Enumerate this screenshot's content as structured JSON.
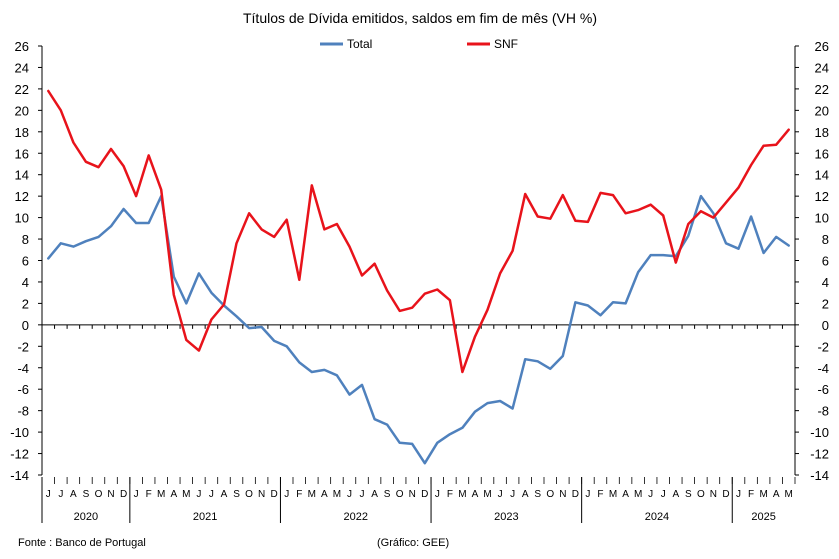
{
  "chart_data": {
    "type": "line",
    "title": "Títulos de Dívida emitidos, saldos em fim de mês  (VH %)",
    "ylim": [
      -14,
      26
    ],
    "yticks": [
      26,
      24,
      22,
      20,
      18,
      16,
      14,
      12,
      10,
      8,
      6,
      4,
      2,
      0,
      -2,
      -4,
      -6,
      -8,
      -10,
      -12,
      -14
    ],
    "grid": false,
    "legend_position": "top-center",
    "x": [
      "J",
      "J",
      "A",
      "S",
      "O",
      "N",
      "D",
      "J",
      "F",
      "M",
      "A",
      "M",
      "J",
      "J",
      "A",
      "S",
      "O",
      "N",
      "D",
      "J",
      "F",
      "M",
      "A",
      "M",
      "J",
      "J",
      "A",
      "S",
      "O",
      "N",
      "D",
      "J",
      "F",
      "M",
      "A",
      "M",
      "J",
      "J",
      "A",
      "S",
      "O",
      "N",
      "D",
      "J",
      "F",
      "M",
      "A",
      "M",
      "J",
      "J",
      "A",
      "S",
      "O",
      "N",
      "D",
      "J",
      "F",
      "M",
      "A",
      "M"
    ],
    "year_groups": [
      {
        "label": "2020",
        "count": 7
      },
      {
        "label": "2021",
        "count": 12
      },
      {
        "label": "2022",
        "count": 12
      },
      {
        "label": "2023",
        "count": 12
      },
      {
        "label": "2024",
        "count": 12
      },
      {
        "label": "2025",
        "count": 5
      }
    ],
    "series": [
      {
        "name": "Total",
        "color": "#4F81BD",
        "values": [
          6.2,
          7.6,
          7.3,
          7.8,
          8.2,
          9.2,
          10.8,
          9.5,
          9.5,
          12.0,
          4.5,
          2.0,
          4.8,
          3.0,
          1.8,
          0.8,
          -0.3,
          -0.2,
          -1.5,
          -2.0,
          -3.5,
          -4.4,
          -4.2,
          -4.7,
          -6.5,
          -5.6,
          -8.8,
          -9.3,
          -11.0,
          -11.1,
          -12.9,
          -11.0,
          -10.2,
          -9.6,
          -8.1,
          -7.3,
          -7.1,
          -7.8,
          -3.2,
          -3.4,
          -4.1,
          -2.9,
          2.1,
          1.8,
          0.9,
          2.1,
          2.0,
          4.9,
          6.5,
          6.5,
          6.4,
          8.3,
          12.0,
          10.4,
          7.6,
          7.1,
          10.1,
          6.7,
          8.2,
          7.4
        ]
      },
      {
        "name": "SNF",
        "color": "#E8131B",
        "values": [
          21.8,
          20.0,
          17.0,
          15.2,
          14.7,
          16.4,
          14.8,
          12.0,
          15.8,
          12.6,
          2.8,
          -1.4,
          -2.4,
          0.5,
          1.9,
          7.6,
          10.4,
          8.9,
          8.2,
          9.8,
          4.2,
          13.0,
          8.9,
          9.4,
          7.3,
          4.6,
          5.7,
          3.2,
          1.3,
          1.6,
          2.9,
          3.3,
          2.3,
          -4.4,
          -1.1,
          1.4,
          4.8,
          6.9,
          12.2,
          10.1,
          9.9,
          12.1,
          9.7,
          9.6,
          12.3,
          12.1,
          10.4,
          10.7,
          11.2,
          10.2,
          5.8,
          9.4,
          10.6,
          10.0,
          11.4,
          12.8,
          14.9,
          16.7,
          16.8,
          18.2
        ]
      }
    ]
  },
  "footer": {
    "source": "Fonte : Banco de Portugal",
    "credit": "(Gráfico: GEE)"
  }
}
